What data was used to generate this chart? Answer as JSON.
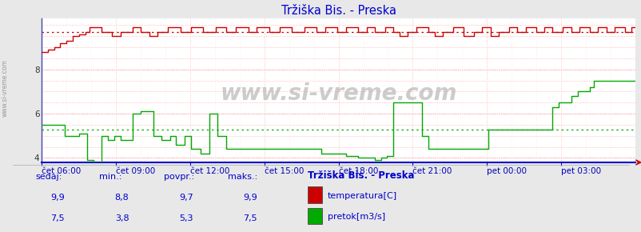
{
  "title": "Tržiška Bis. - Preska",
  "title_color": "#0000cc",
  "bg_color": "#e8e8e8",
  "plot_bg_color": "#ffffff",
  "ylim": [
    3.8,
    10.3
  ],
  "yticks": [
    4,
    6,
    8
  ],
  "temp_color": "#cc0000",
  "flow_color": "#00aa00",
  "temp_avg": 9.7,
  "flow_avg": 5.3,
  "watermark": "www.si-vreme.com",
  "legend_title": "Tržiška Bis. - Preska",
  "legend_items": [
    {
      "label": "temperatura[C]",
      "color": "#cc0000"
    },
    {
      "label": "pretok[m3/s]",
      "color": "#00aa00"
    }
  ],
  "stats": {
    "headers": [
      "sedaj:",
      "min.:",
      "povpr.:",
      "maks.:"
    ],
    "temp": [
      "9,9",
      "8,8",
      "9,7",
      "9,9"
    ],
    "flow": [
      "7,5",
      "3,8",
      "5,3",
      "7,5"
    ]
  },
  "xtick_labels": [
    "čet 06:00",
    "čet 09:00",
    "čet 12:00",
    "čet 15:00",
    "čet 18:00",
    "čet 21:00",
    "pet 00:00",
    "pet 03:00"
  ],
  "n_points": 288
}
